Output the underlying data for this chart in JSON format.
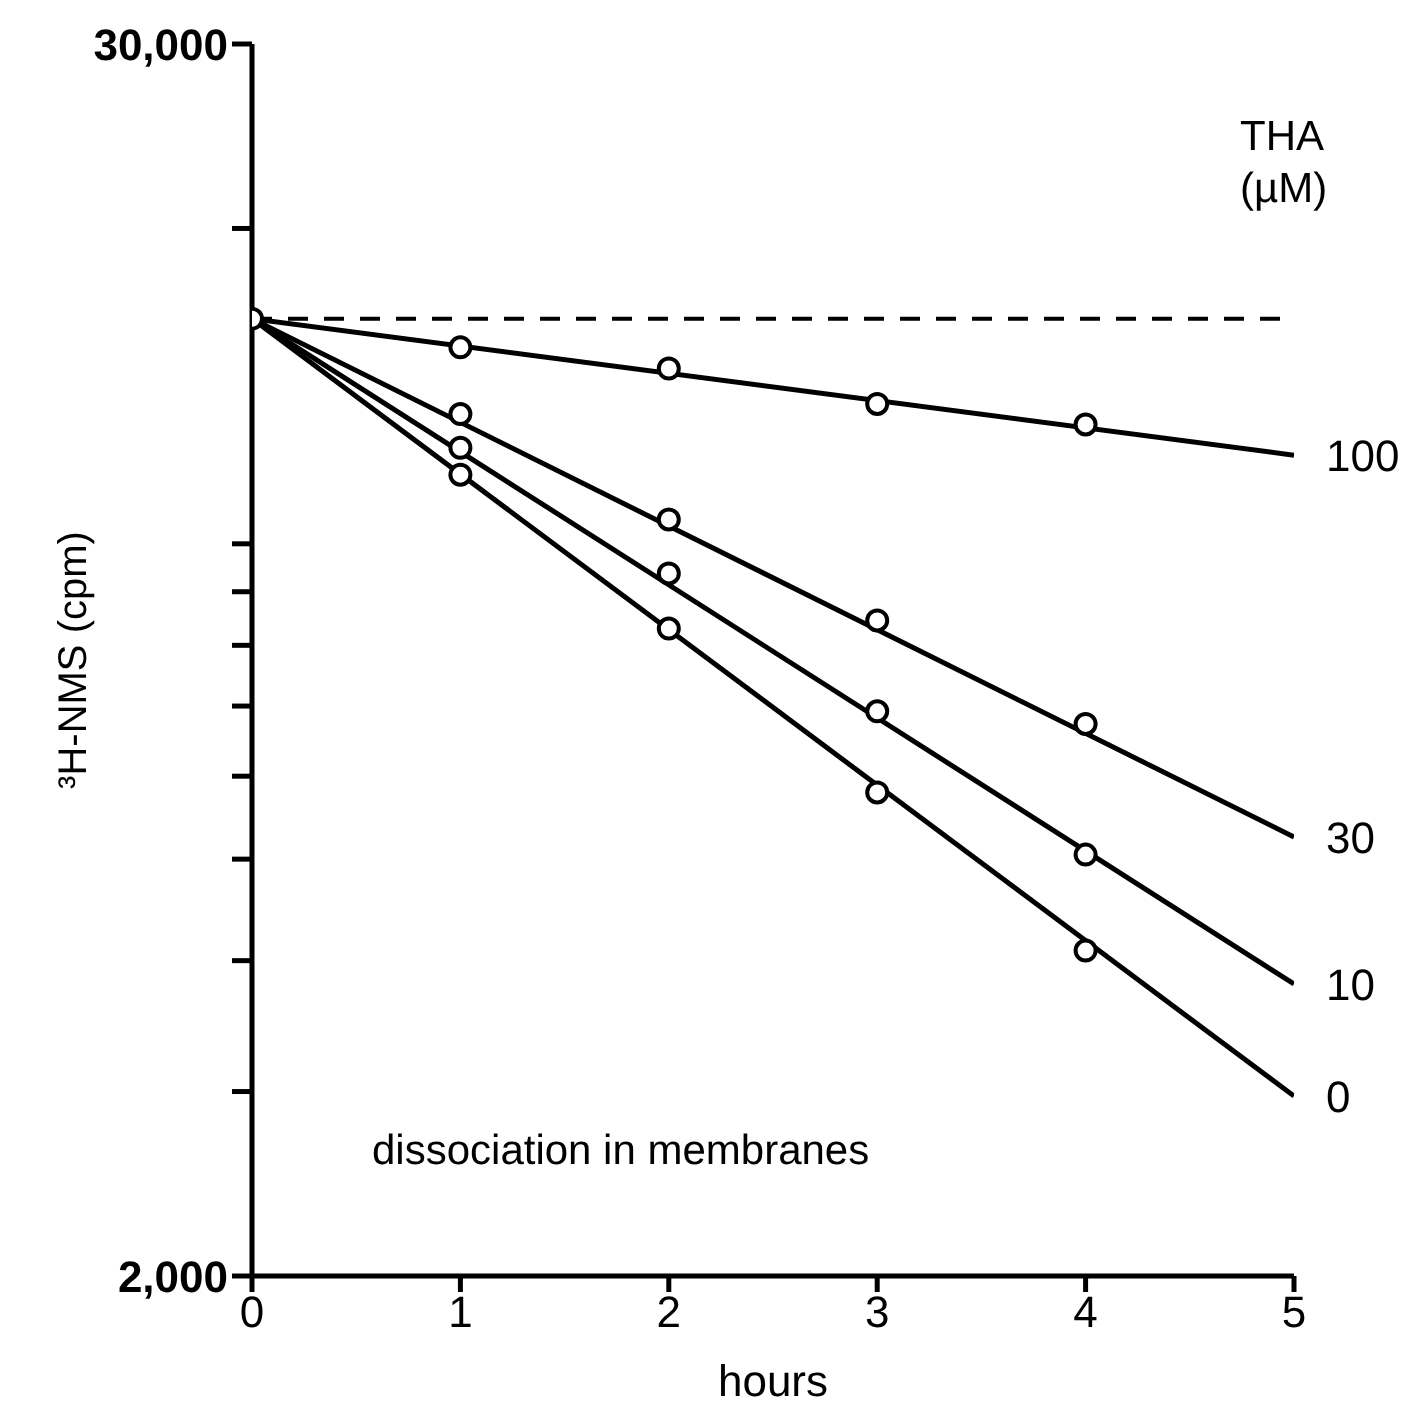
{
  "chart_data": {
    "type": "line",
    "xlabel": "hours",
    "ylabel": "³H-NMS (cpm)",
    "legend_title": "THA (µM)",
    "annotations": [
      "dissociation in membranes"
    ],
    "xlim": [
      0,
      5
    ],
    "xticks": [
      0,
      1,
      2,
      3,
      4,
      5
    ],
    "ylim": [
      2000,
      30000
    ],
    "log": "y",
    "yticks": [
      {
        "value": 2000,
        "label": "2,000"
      },
      {
        "value": 3000,
        "label": null
      },
      {
        "value": 4000,
        "label": null
      },
      {
        "value": 5000,
        "label": null
      },
      {
        "value": 6000,
        "label": null
      },
      {
        "value": 7000,
        "label": null
      },
      {
        "value": 8000,
        "label": null
      },
      {
        "value": 9000,
        "label": null
      },
      {
        "value": 10000,
        "label": null
      },
      {
        "value": 20000,
        "label": null
      },
      {
        "value": 30000,
        "label": "30,000"
      }
    ],
    "ref_lines": [
      {
        "axis": "y",
        "value": 16400,
        "line_style": "dashed",
        "color": "#000000"
      }
    ],
    "series": [
      {
        "name": "100",
        "color": "#000000",
        "marker": "none",
        "x": [
          0,
          5
        ],
        "values": [
          16400,
          12150
        ]
      },
      {
        "name": "30",
        "color": "#000000",
        "marker": "none",
        "x": [
          0,
          5
        ],
        "values": [
          16400,
          5250
        ]
      },
      {
        "name": "10",
        "color": "#000000",
        "marker": "none",
        "x": [
          0,
          5
        ],
        "values": [
          16400,
          3800
        ]
      },
      {
        "name": "0",
        "color": "#000000",
        "marker": "none",
        "x": [
          0,
          5
        ],
        "values": [
          16400,
          2970
        ]
      },
      {
        "type": "scatter",
        "color": "#000000",
        "marker": "circle",
        "x": [
          0,
          1,
          2,
          3,
          4
        ],
        "values": [
          16400,
          15400,
          14700,
          13600,
          13000
        ]
      },
      {
        "type": "scatter",
        "color": "#000000",
        "marker": "circle",
        "x": [
          1,
          2,
          3,
          4
        ],
        "values": [
          13300,
          10550,
          8450,
          6730
        ]
      },
      {
        "type": "scatter",
        "color": "#000000",
        "marker": "circle",
        "x": [
          1,
          2,
          3,
          4
        ],
        "values": [
          12350,
          9370,
          6920,
          5050
        ]
      },
      {
        "type": "scatter",
        "color": "#000000",
        "marker": "circle",
        "x": [
          1,
          2,
          3,
          4
        ],
        "values": [
          11640,
          8300,
          5790,
          4090
        ]
      }
    ]
  }
}
